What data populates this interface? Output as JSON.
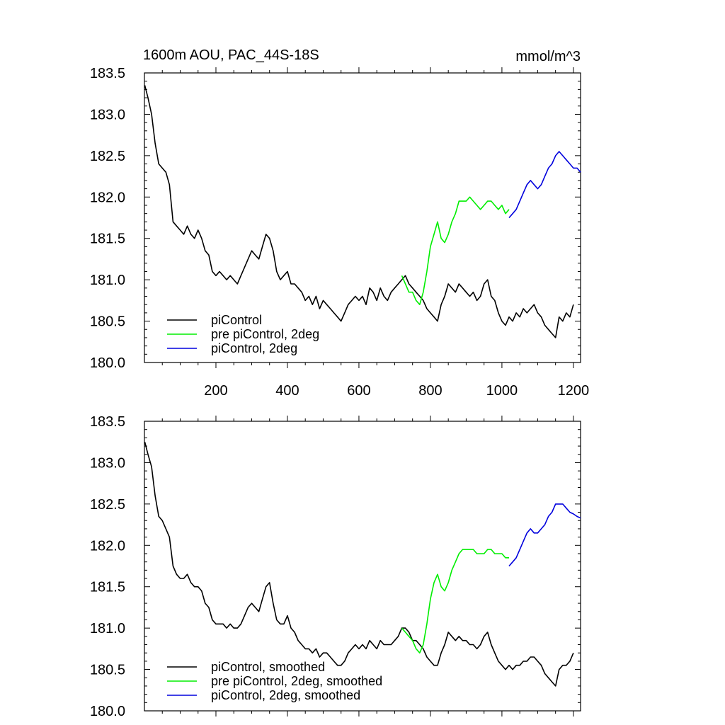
{
  "figure": {
    "title": "1600m AOU, PAC_44S-18S",
    "units": "mmol/m^3"
  },
  "chart_data": [
    {
      "type": "line",
      "panel": "top",
      "xlim": [
        0,
        1220
      ],
      "ylim": [
        180.0,
        183.5
      ],
      "xticks": [
        200,
        400,
        600,
        800,
        1000,
        1200
      ],
      "yticks": [
        "180.0",
        "180.5",
        "181.0",
        "181.5",
        "182.0",
        "182.5",
        "183.0",
        "183.5"
      ],
      "legend_position": "bottom-left",
      "series": [
        {
          "name": "piControl",
          "color": "#000000",
          "x": [
            1,
            10,
            20,
            30,
            40,
            50,
            60,
            70,
            80,
            90,
            100,
            110,
            120,
            130,
            140,
            150,
            160,
            170,
            180,
            190,
            200,
            210,
            220,
            230,
            240,
            250,
            260,
            270,
            280,
            290,
            300,
            310,
            320,
            330,
            340,
            350,
            360,
            370,
            380,
            390,
            400,
            410,
            420,
            430,
            440,
            450,
            460,
            470,
            480,
            490,
            500,
            510,
            520,
            530,
            540,
            550,
            560,
            570,
            580,
            590,
            600,
            610,
            620,
            630,
            640,
            650,
            660,
            670,
            680,
            690,
            700,
            710,
            720,
            730,
            740,
            750,
            760,
            770,
            780,
            790,
            800,
            810,
            820,
            830,
            840,
            850,
            860,
            870,
            880,
            890,
            900,
            910,
            920,
            930,
            940,
            950,
            960,
            970,
            980,
            990,
            1000,
            1010,
            1020,
            1030,
            1040,
            1050,
            1060,
            1070,
            1080,
            1090,
            1100,
            1110,
            1120,
            1130,
            1140,
            1150,
            1160,
            1170,
            1180,
            1190,
            1200
          ],
          "y": [
            183.35,
            183.2,
            183.0,
            182.65,
            182.4,
            182.35,
            182.3,
            182.15,
            181.7,
            181.65,
            181.6,
            181.55,
            181.65,
            181.55,
            181.5,
            181.6,
            181.5,
            181.35,
            181.3,
            181.1,
            181.05,
            181.1,
            181.05,
            181.0,
            181.05,
            181.0,
            180.95,
            181.05,
            181.15,
            181.25,
            181.35,
            181.3,
            181.25,
            181.4,
            181.55,
            181.5,
            181.35,
            181.1,
            181.0,
            181.05,
            181.1,
            180.95,
            180.95,
            180.9,
            180.85,
            180.75,
            180.8,
            180.7,
            180.8,
            180.65,
            180.75,
            180.7,
            180.65,
            180.6,
            180.55,
            180.5,
            180.6,
            180.7,
            180.75,
            180.8,
            180.75,
            180.8,
            180.7,
            180.9,
            180.85,
            180.75,
            180.9,
            180.8,
            180.75,
            180.85,
            180.9,
            180.95,
            181.0,
            181.05,
            180.95,
            180.9,
            180.85,
            180.8,
            180.75,
            180.65,
            180.6,
            180.55,
            180.5,
            180.7,
            180.8,
            180.95,
            180.9,
            180.85,
            180.95,
            180.9,
            180.85,
            180.8,
            180.85,
            180.75,
            180.8,
            180.95,
            181.0,
            180.8,
            180.75,
            180.6,
            180.5,
            180.45,
            180.55,
            180.5,
            180.6,
            180.55,
            180.65,
            180.6,
            180.65,
            180.7,
            180.6,
            180.55,
            180.45,
            180.4,
            180.35,
            180.3,
            180.55,
            180.5,
            180.6,
            180.55,
            180.7
          ]
        },
        {
          "name": "pre piControl, 2deg",
          "color": "#00ee00",
          "x": [
            720,
            730,
            740,
            750,
            760,
            770,
            780,
            790,
            800,
            810,
            820,
            830,
            840,
            850,
            860,
            870,
            880,
            890,
            900,
            910,
            920,
            930,
            940,
            950,
            960,
            970,
            980,
            990,
            1000,
            1010,
            1020
          ],
          "y": [
            181.05,
            180.95,
            180.85,
            180.85,
            180.75,
            180.7,
            180.85,
            181.1,
            181.4,
            181.55,
            181.7,
            181.5,
            181.45,
            181.55,
            181.7,
            181.8,
            181.95,
            181.95,
            181.95,
            182.0,
            181.95,
            181.9,
            181.85,
            181.9,
            181.95,
            181.95,
            181.9,
            181.85,
            181.9,
            181.8,
            181.85
          ]
        },
        {
          "name": "piControl, 2deg",
          "color": "#0000dd",
          "x": [
            1020,
            1030,
            1040,
            1050,
            1060,
            1070,
            1080,
            1090,
            1100,
            1110,
            1120,
            1130,
            1140,
            1150,
            1160,
            1170,
            1180,
            1190,
            1200,
            1210,
            1220
          ],
          "y": [
            181.75,
            181.8,
            181.85,
            181.95,
            182.05,
            182.15,
            182.2,
            182.15,
            182.1,
            182.15,
            182.25,
            182.35,
            182.4,
            182.5,
            182.55,
            182.5,
            182.45,
            182.4,
            182.35,
            182.35,
            182.3
          ]
        }
      ]
    },
    {
      "type": "line",
      "panel": "bottom",
      "xlim": [
        0,
        1220
      ],
      "ylim": [
        180.0,
        183.5
      ],
      "yticks": [
        "180.0",
        "180.5",
        "181.0",
        "181.5",
        "182.0",
        "182.5",
        "183.0",
        "183.5"
      ],
      "legend_position": "bottom-left",
      "series": [
        {
          "name": "piControl, smoothed",
          "color": "#000000",
          "x": [
            1,
            10,
            20,
            30,
            40,
            50,
            60,
            70,
            80,
            90,
            100,
            110,
            120,
            130,
            140,
            150,
            160,
            170,
            180,
            190,
            200,
            210,
            220,
            230,
            240,
            250,
            260,
            270,
            280,
            290,
            300,
            310,
            320,
            330,
            340,
            350,
            360,
            370,
            380,
            390,
            400,
            410,
            420,
            430,
            440,
            450,
            460,
            470,
            480,
            490,
            500,
            510,
            520,
            530,
            540,
            550,
            560,
            570,
            580,
            590,
            600,
            610,
            620,
            630,
            640,
            650,
            660,
            670,
            680,
            690,
            700,
            710,
            720,
            730,
            740,
            750,
            760,
            770,
            780,
            790,
            800,
            810,
            820,
            830,
            840,
            850,
            860,
            870,
            880,
            890,
            900,
            910,
            920,
            930,
            940,
            950,
            960,
            970,
            980,
            990,
            1000,
            1010,
            1020,
            1030,
            1040,
            1050,
            1060,
            1070,
            1080,
            1090,
            1100,
            1110,
            1120,
            1130,
            1140,
            1150,
            1160,
            1170,
            1180,
            1190,
            1200
          ],
          "y": [
            183.25,
            183.1,
            182.95,
            182.6,
            182.35,
            182.3,
            182.2,
            182.1,
            181.75,
            181.65,
            181.6,
            181.6,
            181.65,
            181.55,
            181.5,
            181.5,
            181.45,
            181.3,
            181.25,
            181.1,
            181.05,
            181.05,
            181.05,
            181.0,
            181.05,
            181.0,
            181.0,
            181.05,
            181.15,
            181.25,
            181.3,
            181.25,
            181.2,
            181.35,
            181.5,
            181.55,
            181.3,
            181.1,
            181.05,
            181.05,
            181.15,
            181.0,
            180.95,
            180.85,
            180.8,
            180.75,
            180.75,
            180.7,
            180.75,
            180.65,
            180.7,
            180.7,
            180.65,
            180.6,
            180.55,
            180.55,
            180.6,
            180.7,
            180.75,
            180.8,
            180.75,
            180.8,
            180.75,
            180.85,
            180.8,
            180.75,
            180.85,
            180.8,
            180.8,
            180.8,
            180.85,
            180.9,
            181.0,
            181.0,
            180.95,
            180.85,
            180.85,
            180.8,
            180.75,
            180.65,
            180.6,
            180.55,
            180.55,
            180.7,
            180.8,
            180.95,
            180.9,
            180.85,
            180.9,
            180.85,
            180.85,
            180.8,
            180.8,
            180.75,
            180.8,
            180.9,
            180.95,
            180.8,
            180.7,
            180.6,
            180.55,
            180.5,
            180.55,
            180.5,
            180.55,
            180.55,
            180.6,
            180.6,
            180.65,
            180.65,
            180.6,
            180.55,
            180.45,
            180.4,
            180.35,
            180.3,
            180.5,
            180.55,
            180.55,
            180.6,
            180.7
          ]
        },
        {
          "name": "pre piControl, 2deg, smoothed",
          "color": "#00ee00",
          "x": [
            720,
            730,
            740,
            750,
            760,
            770,
            780,
            790,
            800,
            810,
            820,
            830,
            840,
            850,
            860,
            870,
            880,
            890,
            900,
            910,
            920,
            930,
            940,
            950,
            960,
            970,
            980,
            990,
            1000,
            1010,
            1020
          ],
          "y": [
            181.0,
            180.95,
            180.9,
            180.85,
            180.75,
            180.7,
            180.8,
            181.05,
            181.35,
            181.55,
            181.65,
            181.5,
            181.45,
            181.55,
            181.7,
            181.8,
            181.9,
            181.95,
            181.95,
            181.95,
            181.95,
            181.9,
            181.9,
            181.9,
            181.95,
            181.95,
            181.9,
            181.9,
            181.9,
            181.85,
            181.85
          ]
        },
        {
          "name": "piControl, 2deg, smoothed",
          "color": "#0000dd",
          "x": [
            1020,
            1030,
            1040,
            1050,
            1060,
            1070,
            1080,
            1090,
            1100,
            1110,
            1120,
            1130,
            1140,
            1150,
            1160,
            1170,
            1180,
            1190,
            1200,
            1210,
            1220
          ],
          "y": [
            181.75,
            181.8,
            181.85,
            181.95,
            182.05,
            182.15,
            182.2,
            182.15,
            182.15,
            182.2,
            182.25,
            182.35,
            182.4,
            182.5,
            182.5,
            182.5,
            182.45,
            182.4,
            182.38,
            182.35,
            182.33
          ]
        }
      ]
    }
  ]
}
